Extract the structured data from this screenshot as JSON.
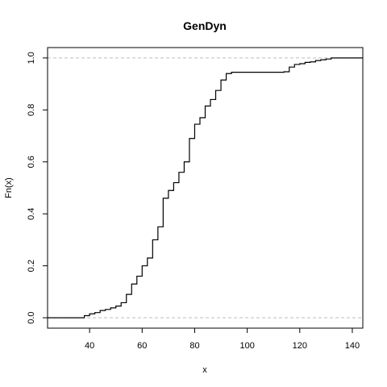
{
  "chart_data": {
    "type": "line",
    "subtype": "ecdf-step",
    "title": "GenDyn",
    "xlabel": "x",
    "ylabel": "Fn(x)",
    "xlim": [
      24,
      144
    ],
    "ylim": [
      -0.04,
      1.04
    ],
    "x_ticks": [
      40,
      60,
      80,
      100,
      120,
      140
    ],
    "y_ticks": [
      0.0,
      0.2,
      0.4,
      0.6,
      0.8,
      1.0
    ],
    "x_tick_labels": [
      "40",
      "60",
      "80",
      "100",
      "120",
      "140"
    ],
    "y_tick_labels": [
      "0.0",
      "0.2",
      "0.4",
      "0.6",
      "0.8",
      "1.0"
    ],
    "reference_lines": [
      0,
      1
    ],
    "grid": false,
    "legend": "none",
    "colors": {
      "line": "#000000",
      "reference": "#bebebe"
    },
    "series": [
      {
        "x": [
          24,
          36,
          38,
          40,
          42,
          44,
          46,
          48,
          50,
          52,
          54,
          56,
          58,
          60,
          62,
          64,
          66,
          68,
          70,
          72,
          74,
          76,
          78,
          80,
          82,
          84,
          86,
          88,
          90,
          92,
          94,
          96,
          100,
          106,
          110,
          114,
          116,
          118,
          120,
          122,
          124,
          126,
          128,
          130,
          132,
          144
        ],
        "y": [
          0,
          0,
          0.008,
          0.015,
          0.02,
          0.028,
          0.032,
          0.038,
          0.045,
          0.058,
          0.09,
          0.13,
          0.16,
          0.2,
          0.23,
          0.3,
          0.35,
          0.46,
          0.49,
          0.52,
          0.56,
          0.6,
          0.69,
          0.745,
          0.77,
          0.815,
          0.84,
          0.875,
          0.915,
          0.94,
          0.945,
          0.945,
          0.945,
          0.945,
          0.945,
          0.947,
          0.965,
          0.975,
          0.978,
          0.983,
          0.985,
          0.99,
          0.993,
          0.996,
          1.0,
          1.0
        ]
      }
    ]
  }
}
